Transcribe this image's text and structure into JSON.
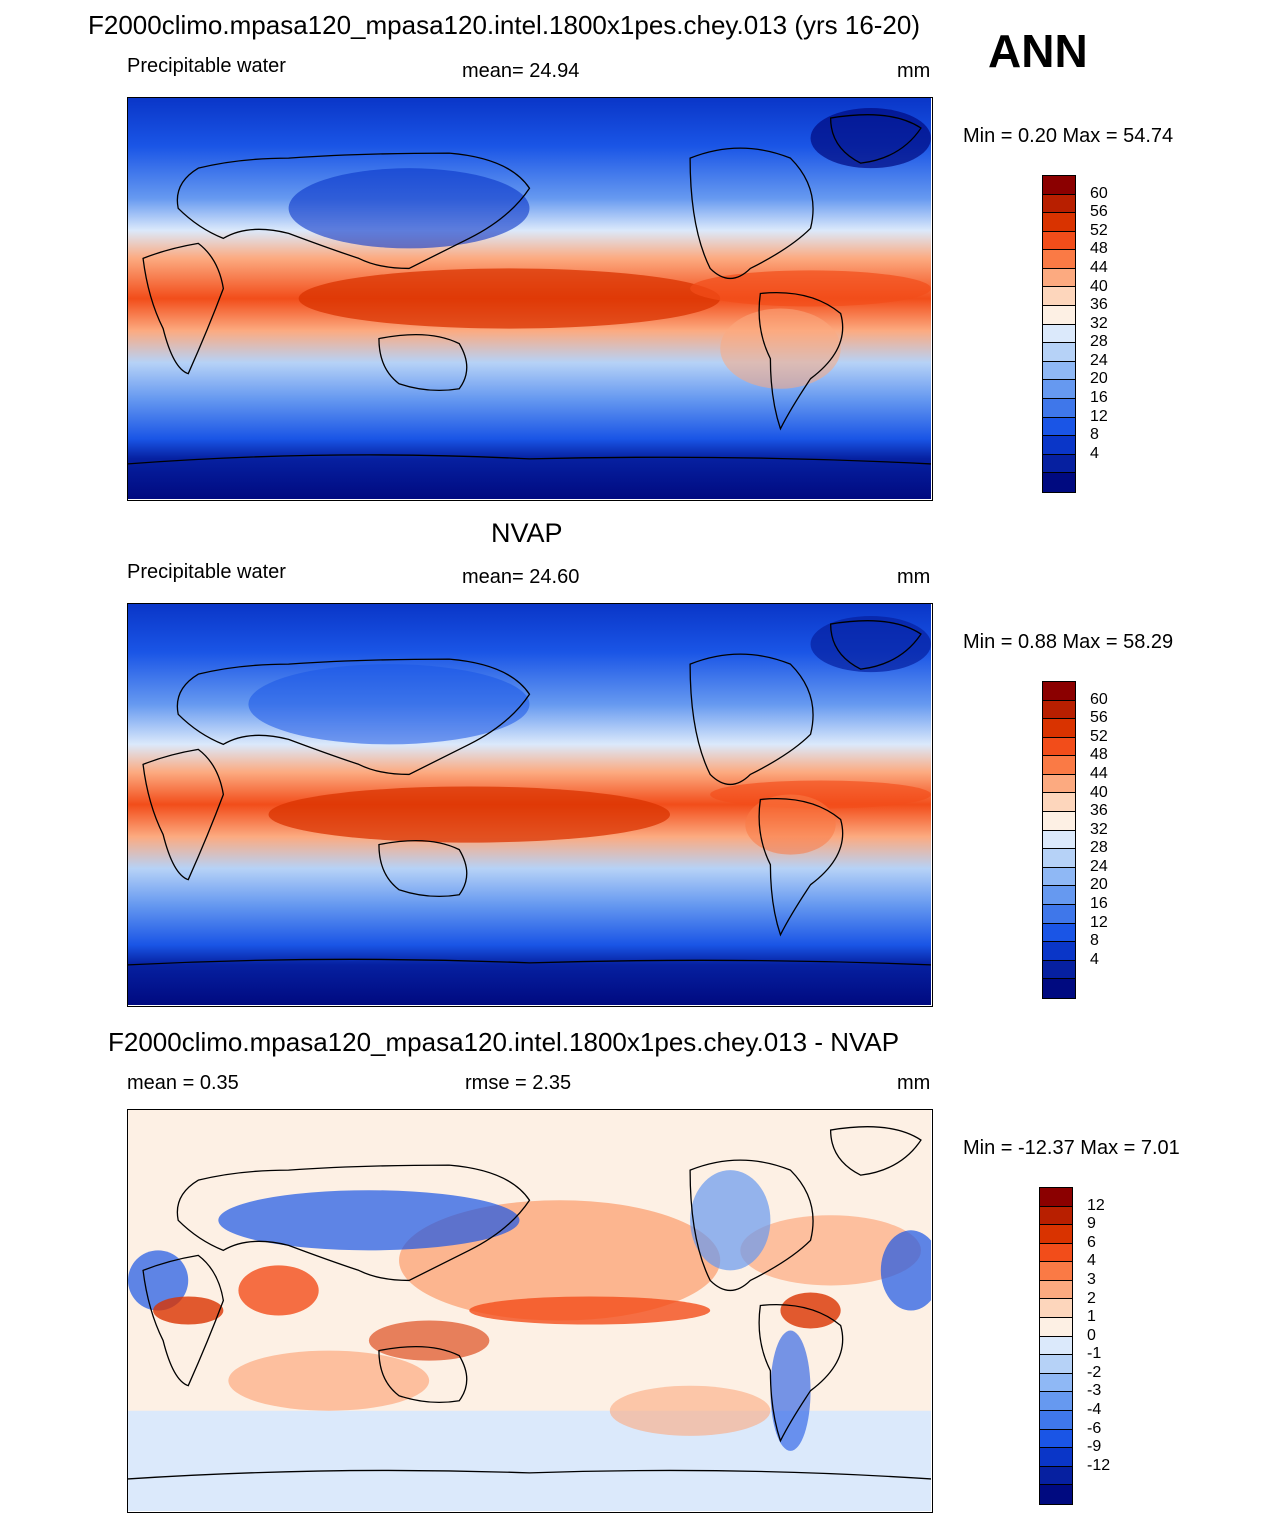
{
  "header": {
    "title": "F2000climo.mpasa120_mpasa120.intel.1800x1pes.chey.013 (yrs 16-20)",
    "season": "ANN"
  },
  "panels": [
    {
      "title": "",
      "left_label": "Precipitable water",
      "center_label": "mean=  24.94",
      "right_label": "mm",
      "minmax": "Min =    0.20 Max =   54.74",
      "colorbar": {
        "colors": [
          "#8b0000",
          "#b81f00",
          "#d93300",
          "#f24d1a",
          "#fa7a45",
          "#fcaa80",
          "#fdd6bc",
          "#fdf0e4",
          "#dbe9fb",
          "#b6d2f7",
          "#8fb8f5",
          "#6699f0",
          "#3f77ea",
          "#1a55e6",
          "#0a36c8",
          "#0620a0",
          "#000a80"
        ],
        "ticks": [
          "60",
          "56",
          "52",
          "48",
          "44",
          "40",
          "36",
          "32",
          "28",
          "24",
          "20",
          "16",
          "12",
          "8",
          "4"
        ]
      }
    },
    {
      "title": "NVAP",
      "left_label": "Precipitable water",
      "center_label": "mean=  24.60",
      "right_label": "mm",
      "minmax": "Min =    0.88 Max =   58.29",
      "colorbar": {
        "colors": [
          "#8b0000",
          "#b81f00",
          "#d93300",
          "#f24d1a",
          "#fa7a45",
          "#fcaa80",
          "#fdd6bc",
          "#fdf0e4",
          "#dbe9fb",
          "#b6d2f7",
          "#8fb8f5",
          "#6699f0",
          "#3f77ea",
          "#1a55e6",
          "#0a36c8",
          "#0620a0",
          "#000a80"
        ],
        "ticks": [
          "60",
          "56",
          "52",
          "48",
          "44",
          "40",
          "36",
          "32",
          "28",
          "24",
          "20",
          "16",
          "12",
          "8",
          "4"
        ]
      }
    },
    {
      "title": "F2000climo.mpasa120_mpasa120.intel.1800x1pes.chey.013 - NVAP",
      "left_label": "mean =    0.35",
      "center_label": "rmse =    2.35",
      "right_label": "mm",
      "minmax": "Min = -12.37 Max =    7.01",
      "colorbar": {
        "colors": [
          "#8b0000",
          "#b81f00",
          "#d93300",
          "#f24d1a",
          "#fa7a45",
          "#fcaa80",
          "#fdd6bc",
          "#fdf0e4",
          "#dbe9fb",
          "#b6d2f7",
          "#8fb8f5",
          "#6699f0",
          "#3f77ea",
          "#1a55e6",
          "#0a36c8",
          "#0620a0",
          "#000a80"
        ],
        "ticks": [
          "12",
          "9",
          "6",
          "4",
          "3",
          "2",
          "1",
          "0",
          "-1",
          "-2",
          "-3",
          "-4",
          "-6",
          "-9",
          "-12"
        ]
      }
    }
  ]
}
